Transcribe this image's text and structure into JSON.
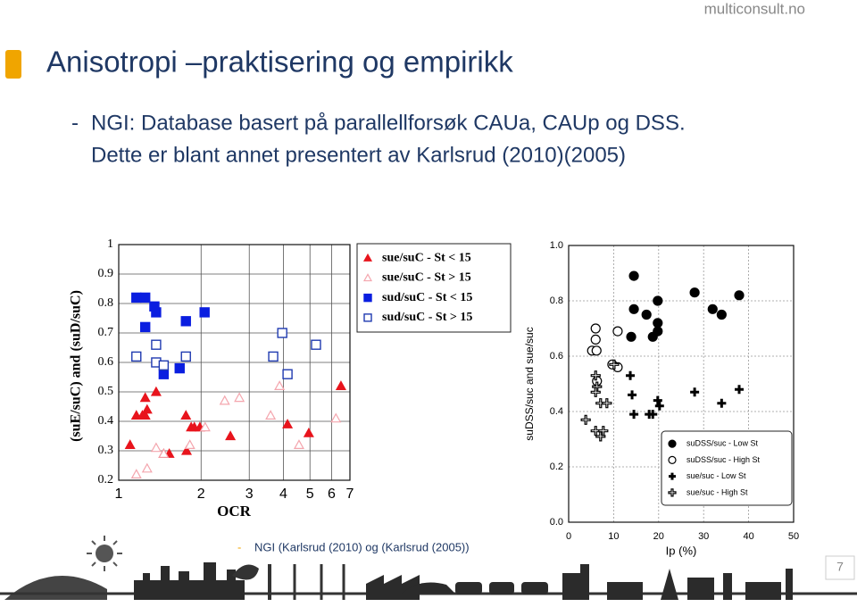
{
  "header": {
    "site": "multiconsult.no",
    "title": "Anisotropi –praktisering og empirikk"
  },
  "bullets": [
    {
      "marker": "-",
      "lines": [
        "NGI: Database basert på parallellforsøk CAUa, CAUp og DSS.",
        "Dette er blant annet presentert av Karlsrud (2010)(2005)"
      ]
    }
  ],
  "caption": {
    "marker": "-",
    "text": "NGI (Karlsrud (2010) og (Karlsrud (2005))"
  },
  "page_number": "7",
  "chart_data": [
    {
      "type": "scatter",
      "xlabel": "OCR",
      "ylabel": "(suE/suC) and (suD/suC)",
      "xlog": true,
      "xlim": [
        1,
        7
      ],
      "xticks": [
        1,
        2,
        3,
        4,
        5,
        6,
        7
      ],
      "ylim": [
        0.2,
        1
      ],
      "yticks": [
        0.2,
        0.3,
        0.4,
        0.5,
        0.6,
        0.7,
        0.8,
        0.9,
        1
      ],
      "grid": true,
      "legend": "upper right",
      "series": [
        {
          "name": "sue/suC - St < 15",
          "color": "#e8141c",
          "marker": "triangle",
          "filled": true,
          "x": [
            1.1,
            1.25,
            1.37,
            1.16,
            1.22,
            1.27,
            1.25,
            1.46,
            1.53,
            1.77,
            1.76,
            1.84,
            1.89,
            1.98,
            2.56,
            4.14,
            4.95,
            6.49
          ],
          "values": [
            0.32,
            0.48,
            0.5,
            0.42,
            0.42,
            0.44,
            0.42,
            0.29,
            0.29,
            0.3,
            0.42,
            0.38,
            0.38,
            0.38,
            0.35,
            0.39,
            0.36,
            0.52
          ]
        },
        {
          "name": "sue/suC - St > 15",
          "color": "#f4a6ae",
          "marker": "triangle",
          "filled": false,
          "x": [
            1.16,
            1.27,
            1.37,
            1.46,
            1.82,
            2.07,
            2.44,
            2.76,
            3.59,
            3.87,
            4.56,
            6.22
          ],
          "values": [
            0.22,
            0.24,
            0.31,
            0.29,
            0.32,
            0.38,
            0.47,
            0.48,
            0.42,
            0.52,
            0.32,
            0.41
          ]
        },
        {
          "name": "sud/suC - St  < 15",
          "color": "#0a1ee0",
          "marker": "square",
          "filled": true,
          "x": [
            1.16,
            1.25,
            1.35,
            1.37,
            1.25,
            1.76,
            2.06,
            1.67,
            1.46
          ],
          "values": [
            0.82,
            0.82,
            0.79,
            0.77,
            0.72,
            0.74,
            0.77,
            0.58,
            0.56
          ]
        },
        {
          "name": "sud/suC - St > 15",
          "color": "#1f3ab0",
          "marker": "square",
          "filled": false,
          "x": [
            1.16,
            1.37,
            1.37,
            1.46,
            1.76,
            3.67,
            3.96,
            4.14,
            5.26
          ],
          "values": [
            0.62,
            0.66,
            0.6,
            0.59,
            0.62,
            0.62,
            0.7,
            0.56,
            0.66
          ]
        }
      ]
    },
    {
      "type": "scatter",
      "xlabel": "Ip (%)",
      "ylabel": "suDSS/suc and sue/suc",
      "xlog": false,
      "xlim": [
        0,
        50
      ],
      "xticks": [
        0,
        10,
        20,
        30,
        40,
        50
      ],
      "ylim": [
        0,
        1
      ],
      "yticks": [
        {
          "value": 0,
          "label": "0.0"
        },
        0.2,
        0.4,
        0.6,
        0.8,
        {
          "value": 1,
          "label": "1.0"
        }
      ],
      "grid": true,
      "legend": "lower right",
      "series": [
        {
          "name": "suDSS/suc - Low St",
          "color": "#000000",
          "marker": "circle",
          "filled": true,
          "x": [
            14.5,
            14.5,
            17.3,
            19.8,
            19.8,
            19.8,
            18.7,
            13.9,
            28.0,
            32.0,
            34.0,
            37.9
          ],
          "values": [
            0.89,
            0.77,
            0.75,
            0.8,
            0.72,
            0.69,
            0.67,
            0.67,
            0.83,
            0.77,
            0.75,
            0.82
          ]
        },
        {
          "name": "suDSS/suc - High St",
          "color": "#000000",
          "marker": "circle",
          "filled": false,
          "x": [
            6.0,
            6.0,
            5.2,
            6.2,
            10.9,
            9.7,
            10.9,
            6.3
          ],
          "values": [
            0.7,
            0.66,
            0.62,
            0.62,
            0.69,
            0.57,
            0.56,
            0.51
          ]
        },
        {
          "name": "sue/suc - Low St",
          "color": "#000000",
          "marker": "plus",
          "filled": true,
          "x": [
            13.7,
            14.1,
            14.5,
            17.9,
            18.7,
            19.8,
            20.2,
            28.0,
            34.0,
            37.9
          ],
          "values": [
            0.53,
            0.46,
            0.39,
            0.39,
            0.39,
            0.44,
            0.42,
            0.47,
            0.43,
            0.48
          ]
        },
        {
          "name": "sue/suc - High St",
          "color": "#000000",
          "marker": "plus",
          "filled": false,
          "x": [
            3.8,
            6.0,
            6.3,
            6.0,
            7.1,
            8.5,
            6.0,
            7.1,
            7.7,
            10.1
          ],
          "values": [
            0.37,
            0.53,
            0.49,
            0.47,
            0.43,
            0.43,
            0.33,
            0.31,
            0.33,
            0.57
          ]
        }
      ]
    }
  ]
}
